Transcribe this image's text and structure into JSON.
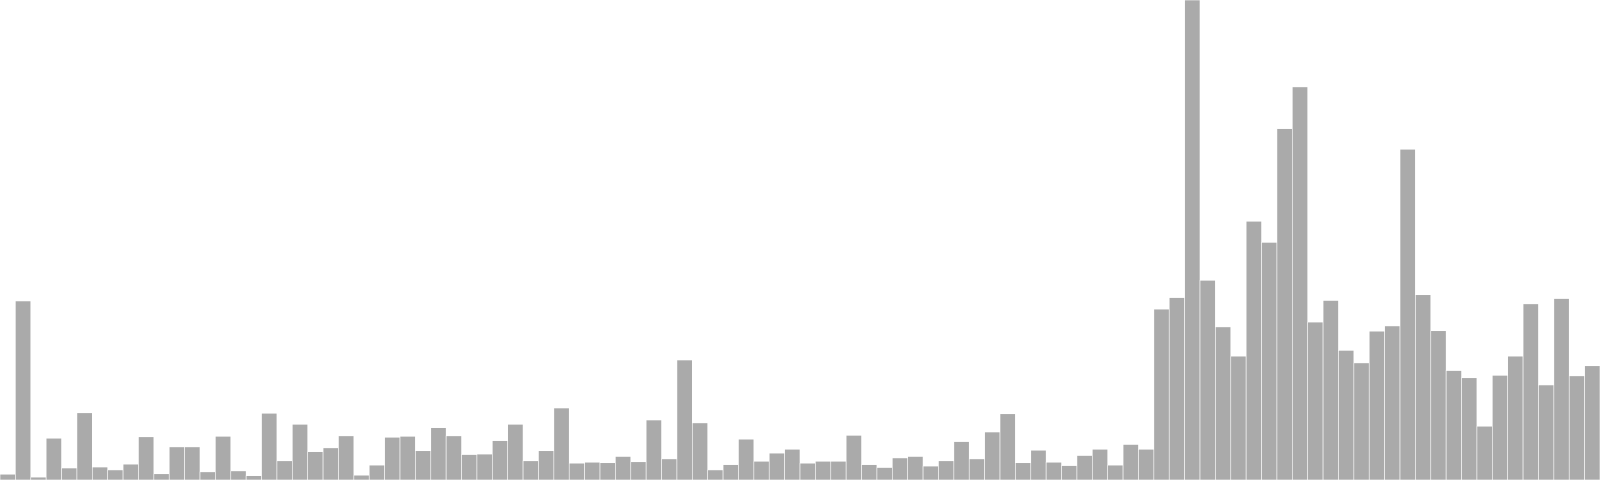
{
  "chart_data": {
    "type": "bar",
    "bar_color": "#aaaaaa",
    "bar_edge_color": "#ffffff",
    "background": "#ffffff",
    "ylim": [
      0,
      100
    ],
    "grid": false,
    "values": [
      1.2,
      37.3,
      0.6,
      8.7,
      2.5,
      14.0,
      2.7,
      2.1,
      3.3,
      9.0,
      1.3,
      6.9,
      6.9,
      1.7,
      9.1,
      1.9,
      0.9,
      13.9,
      4.0,
      11.6,
      5.9,
      6.7,
      9.2,
      1.0,
      3.1,
      8.9,
      9.1,
      6.1,
      10.9,
      9.2,
      5.3,
      5.4,
      8.2,
      11.6,
      4.0,
      6.1,
      15.0,
      3.5,
      3.7,
      3.6,
      4.9,
      3.8,
      12.5,
      4.4,
      25.0,
      11.9,
      2.1,
      3.2,
      8.5,
      3.9,
      5.6,
      6.4,
      3.5,
      3.9,
      3.9,
      9.3,
      3.2,
      2.6,
      4.6,
      4.9,
      2.9,
      4.0,
      8.0,
      4.4,
      10.0,
      13.8,
      3.6,
      6.2,
      3.7,
      3.0,
      5.1,
      6.4,
      3.1,
      7.4,
      6.4,
      35.6,
      38.0,
      100.0,
      41.6,
      31.9,
      25.8,
      53.9,
      49.5,
      73.2,
      81.9,
      32.9,
      37.4,
      27.0,
      24.4,
      31.0,
      32.1,
      68.9,
      38.6,
      31.1,
      22.8,
      21.3,
      11.2,
      21.8,
      25.8,
      36.7,
      19.8,
      37.8,
      21.7,
      23.8
    ]
  }
}
